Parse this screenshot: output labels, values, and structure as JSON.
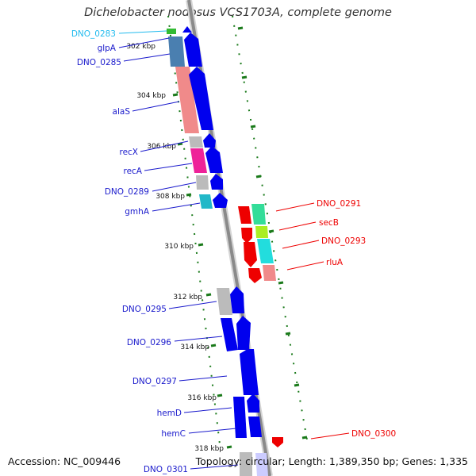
{
  "title": "Dichelobacter nodosus VCS1703A, complete genome",
  "accession": "Accession: NC_009446",
  "topology": "Topology: circular; Length: 1,389,350 bp; Genes: 1,335",
  "colors": {
    "backbone": "#8a8a8a",
    "forward_gene": "#0000ee",
    "reverse_gene": "#ee0000",
    "tick": "#1a7a1a"
  },
  "ticks": [
    {
      "label": "302 kbp"
    },
    {
      "label": "304 kbp"
    },
    {
      "label": "306 kbp"
    },
    {
      "label": "308 kbp"
    },
    {
      "label": "310 kbp"
    },
    {
      "label": "312 kbp"
    },
    {
      "label": "314 kbp"
    },
    {
      "label": "316 kbp"
    },
    {
      "label": "318 kbp"
    }
  ],
  "forward_genes": [
    {
      "label": "DNO_0283",
      "color": "#22bbee"
    },
    {
      "label": "glpA",
      "color": "#1a1acc"
    },
    {
      "label": "DNO_0285",
      "color": "#1a1acc"
    },
    {
      "label": "alaS",
      "color": "#1a1acc"
    },
    {
      "label": "recX",
      "color": "#1a1acc"
    },
    {
      "label": "recA",
      "color": "#1a1acc"
    },
    {
      "label": "DNO_0289",
      "color": "#1a1acc"
    },
    {
      "label": "gmhA",
      "color": "#1a1acc"
    },
    {
      "label": "DNO_0295",
      "color": "#1a1acc"
    },
    {
      "label": "DNO_0296",
      "color": "#1a1acc"
    },
    {
      "label": "DNO_0297",
      "color": "#1a1acc"
    },
    {
      "label": "hemD",
      "color": "#1a1acc"
    },
    {
      "label": "hemC",
      "color": "#1a1acc"
    },
    {
      "label": "DNO_0301",
      "color": "#1a1acc"
    }
  ],
  "reverse_genes": [
    {
      "label": "DNO_0291"
    },
    {
      "label": "secB"
    },
    {
      "label": "DNO_0293"
    },
    {
      "label": "rluA"
    },
    {
      "label": "DNO_0300"
    }
  ]
}
